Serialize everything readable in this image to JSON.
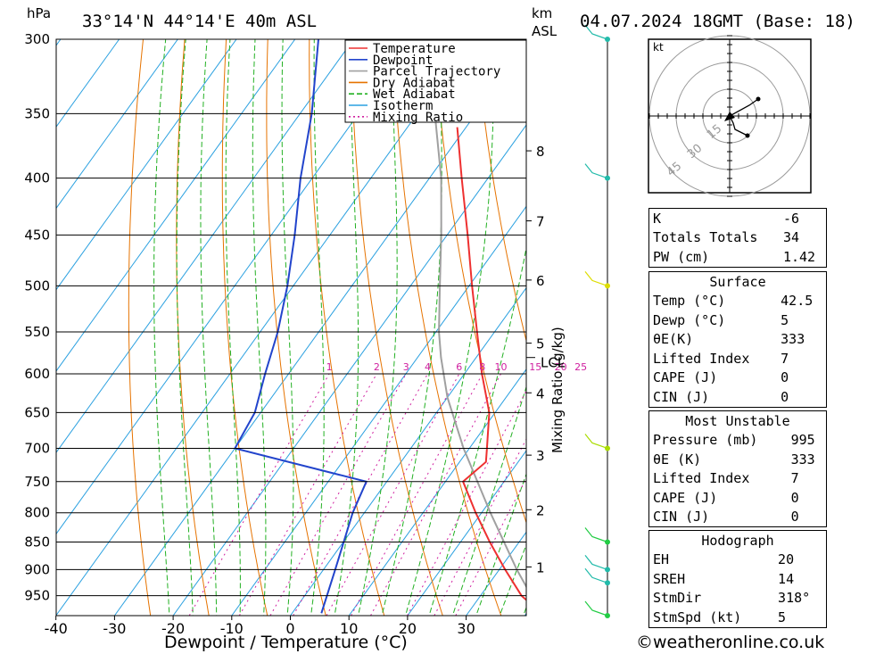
{
  "header": {
    "location": "33°14'N  44°14'E  40m  ASL",
    "datetime": "04.07.2024  18GMT  (Base: 18)",
    "unit_hpa": "hPa",
    "unit_km": "km",
    "unit_asl": "ASL"
  },
  "footer": {
    "site": "©weatheronline.co.uk"
  },
  "colors": {
    "temperature": "#ee3030",
    "dewpoint": "#2244cc",
    "parcel": "#a0a0a0",
    "dry_adiabat": "#e67300",
    "wet_adiabat": "#22b022",
    "isotherm": "#2aa0e0",
    "mixing_ratio": "#d020a0",
    "wind": "#22bbaa"
  },
  "chart_data": {
    "type": "skew-t",
    "xlabel": "Dewpoint / Temperature (°C)",
    "xticks": [
      -40,
      -30,
      -20,
      -10,
      0,
      10,
      20,
      30
    ],
    "pressure_levels": [
      300,
      350,
      400,
      450,
      500,
      550,
      600,
      650,
      700,
      750,
      800,
      850,
      900,
      950
    ],
    "pressure_range": [
      300,
      990
    ],
    "km_ticks": [
      {
        "km": "8",
        "p": 378
      },
      {
        "km": "7",
        "p": 437
      },
      {
        "km": "6",
        "p": 494
      },
      {
        "km": "5",
        "p": 563
      },
      {
        "km": "4",
        "p": 624
      },
      {
        "km": "3",
        "p": 710
      },
      {
        "km": "2",
        "p": 795
      },
      {
        "km": "1",
        "p": 895
      }
    ],
    "lcl": {
      "label": "LCL",
      "p": 580
    },
    "mixing_ratio_label": "Mixing Ratio (g/kg)",
    "mixing_ratios": [
      "1",
      "2",
      "3",
      "4",
      "6",
      "8",
      "10",
      "15",
      "20",
      "25"
    ],
    "temperature": [
      {
        "p": 985,
        "t": 42.5
      },
      {
        "p": 950,
        "t": 37
      },
      {
        "p": 900,
        "t": 31
      },
      {
        "p": 850,
        "t": 25
      },
      {
        "p": 800,
        "t": 19
      },
      {
        "p": 750,
        "t": 13
      },
      {
        "p": 720,
        "t": 14.5
      },
      {
        "p": 700,
        "t": 13
      },
      {
        "p": 650,
        "t": 9
      },
      {
        "p": 600,
        "t": 3
      },
      {
        "p": 550,
        "t": -3
      },
      {
        "p": 500,
        "t": -9.5
      },
      {
        "p": 450,
        "t": -16.5
      },
      {
        "p": 400,
        "t": -24.5
      },
      {
        "p": 360,
        "t": -31.5
      }
    ],
    "dewpoint": [
      {
        "p": 985,
        "t": 5
      },
      {
        "p": 900,
        "t": 2
      },
      {
        "p": 800,
        "t": -2
      },
      {
        "p": 750,
        "t": -3.5
      },
      {
        "p": 700,
        "t": -30
      },
      {
        "p": 650,
        "t": -31
      },
      {
        "p": 600,
        "t": -34
      },
      {
        "p": 550,
        "t": -37
      },
      {
        "p": 500,
        "t": -41
      },
      {
        "p": 450,
        "t": -46
      },
      {
        "p": 400,
        "t": -52
      },
      {
        "p": 350,
        "t": -58
      },
      {
        "p": 300,
        "t": -66
      }
    ],
    "parcel": [
      {
        "p": 985,
        "t": 42.5
      },
      {
        "p": 900,
        "t": 33
      },
      {
        "p": 800,
        "t": 21.5
      },
      {
        "p": 700,
        "t": 9
      },
      {
        "p": 630,
        "t": 0
      },
      {
        "p": 580,
        "t": -6
      },
      {
        "p": 550,
        "t": -9.5
      },
      {
        "p": 500,
        "t": -15
      },
      {
        "p": 450,
        "t": -21
      },
      {
        "p": 400,
        "t": -28
      },
      {
        "p": 350,
        "t": -37
      },
      {
        "p": 300,
        "t": -48
      }
    ],
    "wind_levels": [
      {
        "p": 300
      },
      {
        "p": 400
      },
      {
        "p": 500
      },
      {
        "p": 700
      },
      {
        "p": 850
      },
      {
        "p": 900
      },
      {
        "p": 925
      },
      {
        "p": 985
      }
    ],
    "legend": [
      "Temperature",
      "Dewpoint",
      "Parcel Trajectory",
      "Dry Adiabat",
      "Wet Adiabat",
      "Isotherm",
      "Mixing Ratio"
    ],
    "legend_position": "top-right",
    "hodograph": {
      "unit": "kt",
      "rings": [
        "15",
        "30",
        "45"
      ]
    }
  },
  "indices": [
    {
      "label": "K",
      "value": "-6"
    },
    {
      "label": "Totals Totals",
      "value": "34"
    },
    {
      "label": "PW (cm)",
      "value": "1.42"
    }
  ],
  "surface": {
    "title": "Surface",
    "rows": [
      {
        "label": "Temp (°C)",
        "value": "42.5"
      },
      {
        "label": "Dewp (°C)",
        "value": "5"
      },
      {
        "label": "θE(K)",
        "value": "333"
      },
      {
        "label": "Lifted Index",
        "value": "7"
      },
      {
        "label": "CAPE (J)",
        "value": "0"
      },
      {
        "label": "CIN (J)",
        "value": "0"
      }
    ]
  },
  "most_unstable": {
    "title": "Most Unstable",
    "rows": [
      {
        "label": "Pressure (mb)",
        "value": "995"
      },
      {
        "label": "θE (K)",
        "value": "333"
      },
      {
        "label": "Lifted Index",
        "value": "7"
      },
      {
        "label": "CAPE (J)",
        "value": "0"
      },
      {
        "label": "CIN (J)",
        "value": "0"
      }
    ]
  },
  "hodograph_table": {
    "title": "Hodograph",
    "rows": [
      {
        "label": "EH",
        "value": "20"
      },
      {
        "label": "SREH",
        "value": "14"
      },
      {
        "label": "StmDir",
        "value": "318°"
      },
      {
        "label": "StmSpd (kt)",
        "value": "5"
      }
    ]
  }
}
